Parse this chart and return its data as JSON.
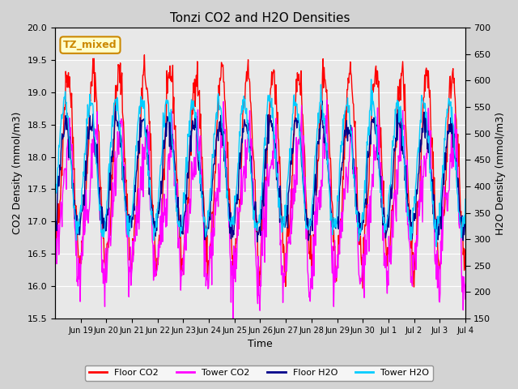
{
  "title": "Tonzi CO2 and H2O Densities",
  "xlabel": "Time",
  "ylabel_left": "CO2 Density (mmol/m3)",
  "ylabel_right": "H2O Density (mmol/m3)",
  "annotation_text": "TZ_mixed",
  "annotation_color": "#cc8800",
  "annotation_bg": "#ffffcc",
  "ylim_left": [
    15.5,
    20.0
  ],
  "ylim_right": [
    150,
    700
  ],
  "background_color": "#d3d3d3",
  "plot_bg_color": "#e8e8e8",
  "legend_items": [
    "Floor CO2",
    "Tower CO2",
    "Floor H2O",
    "Tower H2O"
  ],
  "legend_colors": [
    "#ff0000",
    "#ff00ff",
    "#00008b",
    "#00ccff"
  ],
  "line_width": 1.0,
  "n_days": 16,
  "n_per_day": 48,
  "tick_labels": [
    "Jun 19",
    "Jun 20",
    "Jun 21",
    "Jun 22",
    "Jun 23",
    "Jun 24",
    "Jun 25",
    "Jun 26",
    "Jun 27",
    "Jun 28",
    "Jun 29",
    "Jun 30",
    "Jul 1",
    "Jul 2",
    "Jul 3",
    "Jul 4"
  ],
  "yticks_left": [
    15.5,
    16.0,
    16.5,
    17.0,
    17.5,
    18.0,
    18.5,
    19.0,
    19.5,
    20.0
  ],
  "yticks_right": [
    150,
    200,
    250,
    300,
    350,
    400,
    450,
    500,
    550,
    600,
    650,
    700
  ]
}
